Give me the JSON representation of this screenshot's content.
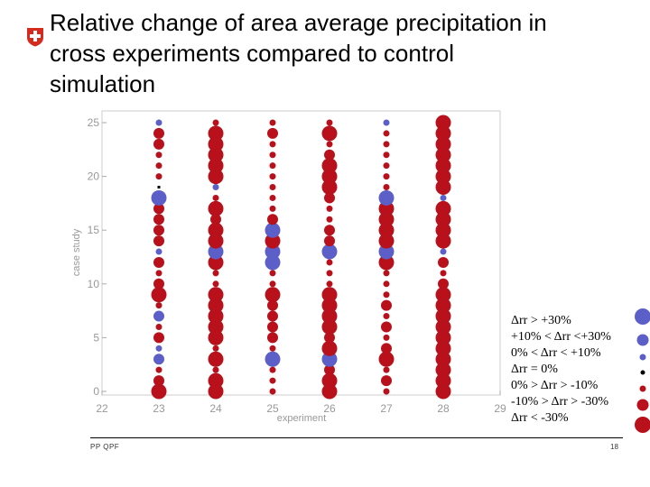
{
  "header": {
    "title_lines": [
      "Relative change of area average precipitation in",
      "cross experiments compared to control",
      "simulation"
    ],
    "logo_icon": "swiss-cross-icon"
  },
  "colors": {
    "increase": "#5b5fc7",
    "decrease": "#b8111c",
    "neutral": "#000000",
    "logo_red": "#d52b1e",
    "axis_text": "#999999"
  },
  "legend": {
    "entries": [
      {
        "label": "Δrr > +30%",
        "class": "large-increase"
      },
      {
        "label": "+10% < Δrr <+30%",
        "class": "medium-increase"
      },
      {
        "label": "0% < Δrr < +10%",
        "class": "small-increase"
      },
      {
        "label": "Δrr = 0%",
        "class": "zero"
      },
      {
        "label": "0% > Δrr > -10%",
        "class": "small-decrease"
      },
      {
        "label": "-10% > Δrr > -30%",
        "class": "medium-decrease"
      },
      {
        "label": "Δrr < -30%",
        "class": "large-decrease"
      }
    ]
  },
  "footer": {
    "left": "PP QPF",
    "page_number": "18"
  },
  "chart_data": {
    "type": "scatter",
    "title": "",
    "xlabel": "experiment",
    "ylabel": "case study",
    "xlim": [
      22,
      29
    ],
    "ylim": [
      0,
      26
    ],
    "xticks": [
      "22",
      "23",
      "24",
      "25",
      "26",
      "27",
      "28",
      "29"
    ],
    "yticks": [
      "0",
      "5",
      "10",
      "15",
      "20",
      "25"
    ],
    "class_order": [
      "large-increase",
      "medium-increase",
      "small-increase",
      "zero",
      "small-decrease",
      "medium-decrease",
      "large-decrease"
    ],
    "series": [
      {
        "experiment": 23,
        "classes": [
          "large-decrease",
          "medium-decrease",
          "small-decrease",
          "medium-increase",
          "small-increase",
          "medium-decrease",
          "small-decrease",
          "medium-increase",
          "small-decrease",
          "large-decrease",
          "medium-decrease",
          "small-decrease",
          "medium-decrease",
          "small-increase",
          "medium-decrease",
          "medium-decrease",
          "medium-decrease",
          "medium-decrease",
          "large-increase",
          "zero",
          "small-decrease",
          "small-decrease",
          "small-decrease",
          "medium-decrease",
          "medium-decrease",
          "small-increase"
        ]
      },
      {
        "experiment": 24,
        "classes": [
          "large-decrease",
          "large-decrease",
          "small-decrease",
          "large-decrease",
          "small-decrease",
          "large-decrease",
          "large-decrease",
          "large-decrease",
          "large-decrease",
          "large-decrease",
          "small-decrease",
          "small-decrease",
          "large-decrease",
          "large-increase",
          "large-decrease",
          "large-decrease",
          "medium-decrease",
          "large-decrease",
          "small-decrease",
          "small-increase",
          "large-decrease",
          "large-decrease",
          "large-decrease",
          "large-decrease",
          "large-decrease",
          "small-decrease"
        ]
      },
      {
        "experiment": 25,
        "classes": [
          "small-decrease",
          "small-decrease",
          "small-decrease",
          "large-increase",
          "small-decrease",
          "medium-decrease",
          "medium-decrease",
          "medium-decrease",
          "medium-decrease",
          "large-decrease",
          "small-decrease",
          "small-decrease",
          "large-increase",
          "large-increase",
          "large-decrease",
          "large-increase",
          "medium-decrease",
          "small-decrease",
          "small-decrease",
          "small-decrease",
          "small-decrease",
          "small-decrease",
          "small-decrease",
          "small-decrease",
          "medium-decrease",
          "small-decrease"
        ]
      },
      {
        "experiment": 26,
        "classes": [
          "large-decrease",
          "large-decrease",
          "medium-decrease",
          "large-increase",
          "large-decrease",
          "medium-decrease",
          "large-decrease",
          "large-decrease",
          "large-decrease",
          "large-decrease",
          "small-decrease",
          "small-decrease",
          "small-decrease",
          "large-increase",
          "medium-decrease",
          "medium-decrease",
          "small-decrease",
          "small-decrease",
          "medium-decrease",
          "large-decrease",
          "large-decrease",
          "large-decrease",
          "medium-decrease",
          "small-decrease",
          "large-decrease",
          "small-decrease"
        ]
      },
      {
        "experiment": 27,
        "classes": [
          "small-decrease",
          "medium-decrease",
          "small-decrease",
          "large-decrease",
          "medium-decrease",
          "small-decrease",
          "medium-decrease",
          "small-decrease",
          "medium-decrease",
          "small-decrease",
          "small-decrease",
          "small-decrease",
          "large-decrease",
          "large-increase",
          "large-decrease",
          "large-decrease",
          "large-decrease",
          "large-decrease",
          "large-increase",
          "small-decrease",
          "small-decrease",
          "small-decrease",
          "small-decrease",
          "small-decrease",
          "small-decrease",
          "small-increase"
        ]
      },
      {
        "experiment": 28,
        "classes": [
          "large-decrease",
          "large-decrease",
          "large-decrease",
          "large-decrease",
          "large-decrease",
          "large-decrease",
          "large-decrease",
          "large-decrease",
          "large-decrease",
          "large-decrease",
          "medium-decrease",
          "small-decrease",
          "medium-decrease",
          "small-increase",
          "large-decrease",
          "large-decrease",
          "large-decrease",
          "large-decrease",
          "small-increase",
          "large-decrease",
          "large-decrease",
          "large-decrease",
          "large-decrease",
          "large-decrease",
          "large-decrease",
          "large-decrease"
        ]
      }
    ]
  }
}
